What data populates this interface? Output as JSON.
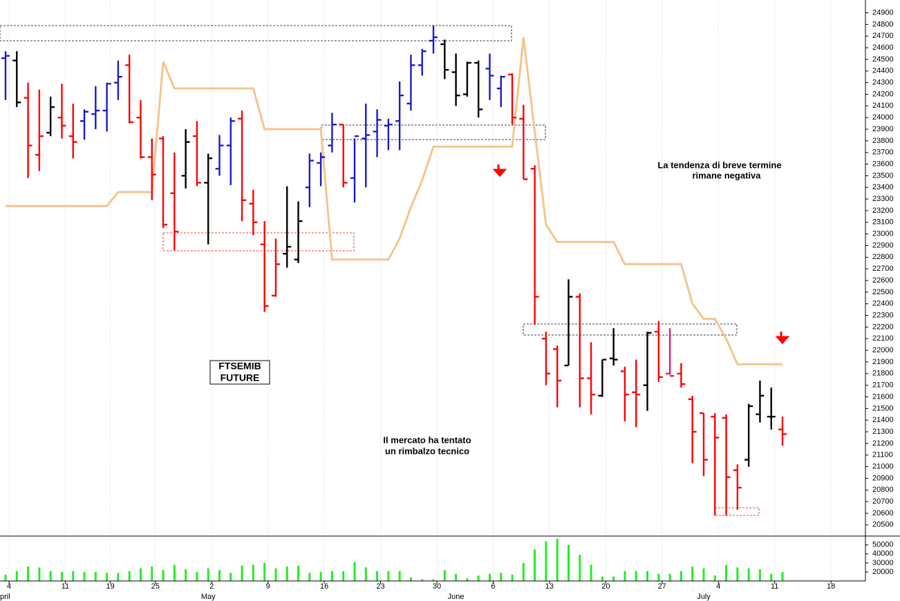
{
  "chart_data": {
    "type": "ohlc",
    "categories": [
      "4",
      null,
      null,
      null,
      null,
      "11",
      null,
      null,
      null,
      "19",
      null,
      null,
      null,
      "25",
      null,
      null,
      null,
      null,
      "2",
      null,
      null,
      null,
      null,
      "9",
      null,
      null,
      null,
      null,
      "16",
      null,
      null,
      null,
      null,
      "23",
      null,
      null,
      null,
      null,
      "30",
      null,
      null,
      null,
      null,
      "6",
      null,
      null,
      null,
      null,
      "13",
      null,
      null,
      null,
      null,
      "20",
      null,
      null,
      null,
      null,
      "27",
      null,
      null,
      null,
      null,
      "4",
      null,
      null,
      null,
      null,
      "11",
      null,
      null,
      null,
      null,
      "18"
    ],
    "month_labels": [
      "pril",
      null,
      null,
      null,
      null,
      null,
      null,
      null,
      null,
      null,
      null,
      null,
      null,
      null,
      null,
      null,
      null,
      null,
      "May",
      null,
      null,
      null,
      null,
      null,
      null,
      null,
      null,
      null,
      null,
      null,
      null,
      null,
      null,
      null,
      null,
      null,
      null,
      null,
      null,
      null,
      "June",
      null,
      null,
      null,
      null,
      null,
      null,
      null,
      null,
      null,
      null,
      null,
      null,
      null,
      null,
      null,
      null,
      null,
      null,
      null,
      null,
      null,
      "July",
      null,
      null,
      null,
      null,
      null,
      null,
      null,
      null,
      null,
      null,
      null
    ],
    "open": [
      24510,
      24490,
      24170,
      23680,
      23870,
      24000,
      23840,
      23970,
      24030,
      24060,
      24300,
      24450,
      24000,
      23660,
      23820,
      23350,
      23500,
      23840,
      23440,
      23560,
      23760,
      23990,
      23260,
      22910,
      22470,
      22830,
      22780,
      23400,
      23610,
      23760,
      23940,
      23480,
      23820,
      23880,
      23930,
      23970,
      24120,
      24450,
      24660,
      24630,
      24390,
      24200,
      24470,
      24420,
      24250,
      24370,
      23990,
      23560,
      22100,
      22010,
      21870,
      22460,
      21760,
      21610,
      21930,
      21820,
      21640,
      21700,
      22160,
      21800,
      21800,
      21580,
      21460,
      21430,
      21420,
      20970,
      21060,
      21450,
      21430,
      21320,
      null,
      null,
      null,
      null
    ],
    "high": [
      24570,
      24570,
      24300,
      24240,
      24180,
      24290,
      24120,
      24070,
      24270,
      24300,
      24490,
      24540,
      24150,
      23820,
      23840,
      23700,
      23900,
      23970,
      23690,
      23850,
      24000,
      24060,
      23380,
      23110,
      22960,
      23410,
      23280,
      23690,
      23700,
      24040,
      23940,
      23820,
      24120,
      24070,
      23990,
      24310,
      24540,
      24590,
      24790,
      24670,
      24550,
      24480,
      24490,
      24550,
      24360,
      24380,
      24110,
      23590,
      22160,
      22040,
      22610,
      22490,
      22070,
      21920,
      22190,
      21860,
      21920,
      22160,
      22250,
      22190,
      21890,
      21610,
      21460,
      21460,
      21450,
      21020,
      21540,
      21740,
      21680,
      21430,
      null,
      null,
      null,
      null
    ],
    "low": [
      24150,
      24090,
      23480,
      23540,
      23840,
      23820,
      23650,
      23810,
      23900,
      23880,
      24150,
      23950,
      23650,
      23290,
      23050,
      22860,
      23390,
      23410,
      22910,
      23500,
      23420,
      23110,
      22990,
      22330,
      22460,
      22710,
      22750,
      23230,
      23410,
      23700,
      23400,
      23270,
      23400,
      23660,
      23720,
      23720,
      24060,
      24360,
      24550,
      24330,
      24100,
      24180,
      24000,
      24150,
      24090,
      23940,
      23470,
      22220,
      21700,
      21510,
      21870,
      21510,
      21450,
      21600,
      21870,
      21390,
      21340,
      21480,
      21730,
      21790,
      21680,
      21030,
      20920,
      20580,
      20580,
      20630,
      21000,
      21380,
      21320,
      21180,
      null,
      null,
      null,
      null
    ],
    "close": [
      24530,
      24130,
      23760,
      23840,
      24090,
      23930,
      23790,
      24050,
      24060,
      24290,
      24350,
      23960,
      23660,
      23510,
      23080,
      23020,
      23790,
      23440,
      23650,
      23760,
      23970,
      23290,
      23100,
      22380,
      22740,
      22890,
      23110,
      23630,
      23660,
      23940,
      23440,
      23840,
      23850,
      23980,
      23940,
      24190,
      24450,
      24570,
      24690,
      24410,
      24190,
      24470,
      24070,
      24360,
      24350,
      24000,
      23470,
      22460,
      21800,
      21740,
      22460,
      21760,
      21620,
      21920,
      21920,
      21620,
      21620,
      22150,
      21770,
      21780,
      21710,
      21300,
      21060,
      21250,
      20910,
      20820,
      21520,
      21610,
      21430,
      21280,
      null,
      null,
      null,
      null
    ],
    "bar_colors": [
      "#1a1acc",
      "#000000",
      "#ff0000",
      "#ff0000",
      "#000000",
      "#ff0000",
      "#ff0000",
      "#1a1acc",
      "#1a1acc",
      "#1a1acc",
      "#1a1acc",
      "#ff0000",
      "#ff0000",
      "#ff0000",
      "#ff0000",
      "#ff0000",
      "#000000",
      "#ff0000",
      "#000000",
      "#1a1acc",
      "#1a1acc",
      "#ff0000",
      "#ff0000",
      "#ff0000",
      "#ff0000",
      "#000000",
      "#000000",
      "#1a1acc",
      "#1a1acc",
      "#1a1acc",
      "#ff0000",
      "#1a1acc",
      "#1a1acc",
      "#1a1acc",
      "#1a1acc",
      "#1a1acc",
      "#1a1acc",
      "#1a1acc",
      "#1a1acc",
      "#000000",
      "#000000",
      "#000000",
      "#000000",
      "#1a1acc",
      "#1a1acc",
      "#ff0000",
      "#ff0000",
      "#ff0000",
      "#ff0000",
      "#ff0000",
      "#000000",
      "#ff0000",
      "#ff0000",
      "#000000",
      "#000000",
      "#ff0000",
      "#ff0000",
      "#000000",
      "#ff0000",
      "#e8147a",
      "#ff0000",
      "#ff0000",
      "#ff0000",
      "#ff0000",
      "#ff0000",
      "#ff0000",
      "#000000",
      "#000000",
      "#000000",
      "#ff0000",
      null,
      null,
      null,
      null
    ],
    "line": {
      "color": "#f5c48c",
      "values": [
        23240,
        23240,
        23240,
        23240,
        23240,
        23240,
        23240,
        23240,
        23240,
        23240,
        23360,
        23360,
        23360,
        23360,
        24480,
        24250,
        24250,
        24250,
        24250,
        24250,
        24250,
        24250,
        24250,
        23900,
        23900,
        23900,
        23900,
        23900,
        23900,
        22780,
        22780,
        22780,
        22780,
        22780,
        22780,
        22960,
        23230,
        23460,
        23750,
        23750,
        23750,
        23750,
        23750,
        23750,
        23750,
        23750,
        24690,
        23880,
        23080,
        22930,
        22930,
        22930,
        22930,
        22930,
        22930,
        22740,
        22740,
        22740,
        22740,
        22740,
        22740,
        22400,
        22270,
        22270,
        22100,
        21880,
        21880,
        21880,
        21880,
        21880,
        null,
        null,
        null,
        null
      ]
    },
    "ylim": [
      20410,
      25010
    ],
    "yticks": [
      20500,
      20600,
      20700,
      20800,
      20900,
      21000,
      21100,
      21200,
      21300,
      21400,
      21500,
      21600,
      21700,
      21800,
      21900,
      22000,
      22100,
      22200,
      22300,
      22400,
      22500,
      22600,
      22700,
      22800,
      22900,
      23000,
      23100,
      23200,
      23300,
      23400,
      23500,
      23600,
      23700,
      23800,
      23900,
      24000,
      24100,
      24200,
      24300,
      24400,
      24500,
      24600,
      24700,
      24800,
      24900
    ],
    "volume": {
      "color": "#22ee22",
      "ylim": [
        10000,
        59000
      ],
      "yticks": [
        20000,
        30000,
        40000,
        50000
      ],
      "values": [
        17000,
        21000,
        26000,
        25000,
        21000,
        20000,
        21000,
        20000,
        20000,
        19000,
        19000,
        21000,
        24000,
        26000,
        22000,
        28000,
        23000,
        20000,
        24000,
        22000,
        19000,
        27000,
        28000,
        30000,
        24000,
        26000,
        27000,
        19000,
        20000,
        21000,
        21000,
        31000,
        25000,
        21000,
        21000,
        21000,
        14000,
        12000,
        12000,
        22000,
        18000,
        13000,
        16000,
        18000,
        19000,
        17000,
        30000,
        45000,
        54000,
        57000,
        50000,
        39000,
        28000,
        15000,
        15000,
        21000,
        21000,
        21000,
        18000,
        18000,
        21000,
        26000,
        24000,
        16000,
        28000,
        25000,
        24000,
        23000,
        18000,
        20000,
        null,
        null,
        null,
        null
      ]
    },
    "grid": true,
    "annotations": [
      {
        "lines": [
          "FTSEMIB",
          "FUTURE"
        ],
        "color": "#000000"
      },
      {
        "lines": [
          "Il mercato ha tentato",
          "un rimbalzo tecnico"
        ],
        "color": "#000000"
      },
      {
        "lines": [
          "La tendenza di breve termine",
          "rimane negativa"
        ],
        "color": "#ff0000"
      }
    ]
  }
}
